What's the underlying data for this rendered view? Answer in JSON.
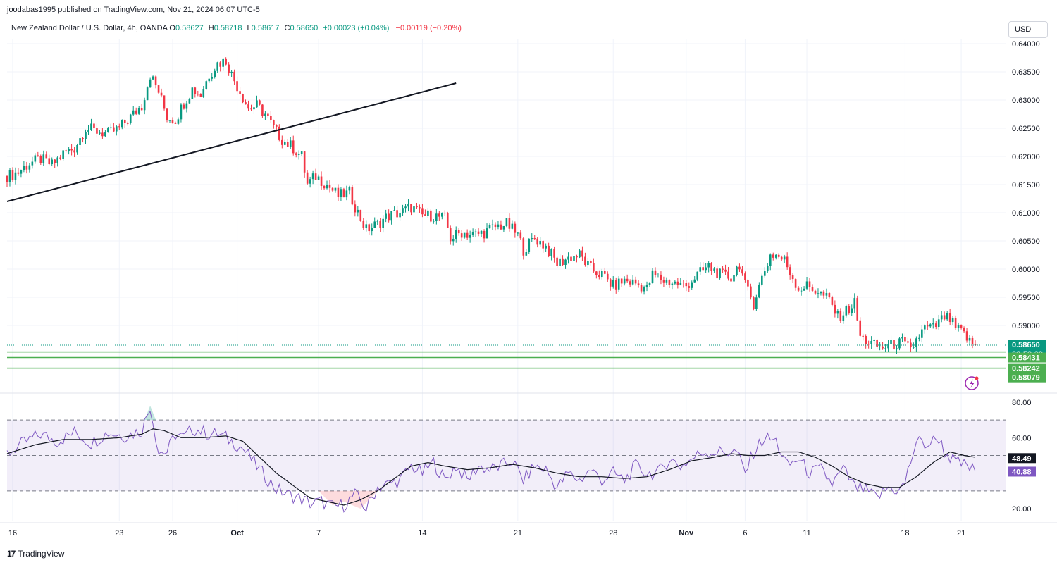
{
  "header": {
    "publisher_line": "joodabas1995 published on TradingView.com, Nov 21, 2024 06:07 UTC-5"
  },
  "legend": {
    "symbol": "New Zealand Dollar / U.S. Dollar, 4h, OANDA",
    "o_label": "O",
    "o_value": "0.58627",
    "h_label": "H",
    "h_value": "0.58718",
    "l_label": "L",
    "l_value": "0.58617",
    "c_label": "C",
    "c_value": "0.58650",
    "change": "+0.00023 (+0.04%)",
    "change2": "−0.00119 (−0.20%)"
  },
  "currency_button": "USD",
  "footer": {
    "brand": "TradingView",
    "logo": "17"
  },
  "colors": {
    "up": "#089981",
    "down": "#f23645",
    "level": "#4caf50",
    "rsi": "#7e57c2",
    "rsi_ma": "#131722",
    "rsi_band": "#7e57c2"
  },
  "chart_data": [
    {
      "type": "candlestick",
      "title": "New Zealand Dollar / U.S. Dollar, 4h, OANDA",
      "ylim": [
        0.5795,
        0.641
      ],
      "y_ticks": [
        "0.64000",
        "0.63500",
        "0.63000",
        "0.62500",
        "0.62000",
        "0.61500",
        "0.61000",
        "0.60500",
        "0.60000",
        "0.59500",
        "0.59000"
      ],
      "y_tick_values": [
        0.64,
        0.635,
        0.63,
        0.625,
        0.62,
        0.615,
        0.61,
        0.605,
        0.6,
        0.595,
        0.59
      ],
      "x_ticks": [
        "16",
        "23",
        "26",
        "Oct",
        "7",
        "14",
        "21",
        "28",
        "Nov",
        "6",
        "11",
        "18",
        "21"
      ],
      "x_tick_index": [
        2,
        40,
        59,
        82,
        111,
        148,
        182,
        216,
        242,
        263,
        285,
        320,
        340
      ],
      "close_path": [
        [
          0,
          0.6165
        ],
        [
          4,
          0.6172
        ],
        [
          8,
          0.6188
        ],
        [
          12,
          0.6195
        ],
        [
          16,
          0.6185
        ],
        [
          20,
          0.6205
        ],
        [
          24,
          0.6215
        ],
        [
          28,
          0.625
        ],
        [
          32,
          0.6245
        ],
        [
          36,
          0.624
        ],
        [
          40,
          0.625
        ],
        [
          44,
          0.627
        ],
        [
          48,
          0.629
        ],
        [
          51,
          0.6345
        ],
        [
          54,
          0.6315
        ],
        [
          57,
          0.627
        ],
        [
          60,
          0.6265
        ],
        [
          63,
          0.6295
        ],
        [
          66,
          0.632
        ],
        [
          69,
          0.631
        ],
        [
          72,
          0.6345
        ],
        [
          75,
          0.6365
        ],
        [
          78,
          0.637
        ],
        [
          80,
          0.6345
        ],
        [
          83,
          0.6315
        ],
        [
          86,
          0.6285
        ],
        [
          89,
          0.629
        ],
        [
          92,
          0.6275
        ],
        [
          95,
          0.625
        ],
        [
          98,
          0.623
        ],
        [
          102,
          0.6215
        ],
        [
          105,
          0.62
        ],
        [
          107,
          0.615
        ],
        [
          110,
          0.6165
        ],
        [
          114,
          0.615
        ],
        [
          118,
          0.613
        ],
        [
          122,
          0.6135
        ],
        [
          125,
          0.61
        ],
        [
          128,
          0.607
        ],
        [
          132,
          0.608
        ],
        [
          136,
          0.6095
        ],
        [
          140,
          0.61
        ],
        [
          144,
          0.611
        ],
        [
          148,
          0.6095
        ],
        [
          152,
          0.6095
        ],
        [
          156,
          0.609
        ],
        [
          158,
          0.6055
        ],
        [
          162,
          0.6065
        ],
        [
          166,
          0.606
        ],
        [
          170,
          0.6065
        ],
        [
          174,
          0.6075
        ],
        [
          178,
          0.608
        ],
        [
          182,
          0.606
        ],
        [
          184,
          0.6035
        ],
        [
          188,
          0.6055
        ],
        [
          192,
          0.604
        ],
        [
          196,
          0.601
        ],
        [
          200,
          0.602
        ],
        [
          204,
          0.6025
        ],
        [
          208,
          0.6
        ],
        [
          212,
          0.599
        ],
        [
          216,
          0.597
        ],
        [
          220,
          0.598
        ],
        [
          224,
          0.5975
        ],
        [
          228,
          0.5965
        ],
        [
          230,
          0.599
        ],
        [
          234,
          0.598
        ],
        [
          238,
          0.5975
        ],
        [
          242,
          0.597
        ],
        [
          246,
          0.599
        ],
        [
          250,
          0.6005
        ],
        [
          254,
          0.599
        ],
        [
          258,
          0.5985
        ],
        [
          261,
          0.601
        ],
        [
          263,
          0.597
        ],
        [
          266,
          0.594
        ],
        [
          269,
          0.5985
        ],
        [
          272,
          0.6025
        ],
        [
          274,
          0.6025
        ],
        [
          277,
          0.6015
        ],
        [
          280,
          0.5985
        ],
        [
          282,
          0.5965
        ],
        [
          285,
          0.597
        ],
        [
          289,
          0.596
        ],
        [
          293,
          0.5945
        ],
        [
          296,
          0.5915
        ],
        [
          300,
          0.593
        ],
        [
          302,
          0.594
        ],
        [
          304,
          0.588
        ],
        [
          307,
          0.587
        ],
        [
          311,
          0.586
        ],
        [
          315,
          0.5865
        ],
        [
          319,
          0.587
        ],
        [
          322,
          0.5855
        ],
        [
          324,
          0.5875
        ],
        [
          327,
          0.5895
        ],
        [
          330,
          0.5895
        ],
        [
          334,
          0.5915
        ],
        [
          336,
          0.591
        ],
        [
          338,
          0.5895
        ],
        [
          341,
          0.5885
        ],
        [
          343,
          0.587
        ],
        [
          345,
          0.5865
        ]
      ],
      "candle_count": 346,
      "trendline": {
        "from": [
          0,
          0.612
        ],
        "to": [
          160,
          0.633
        ]
      },
      "horizontal_levels": [
        0.5853,
        0.58431,
        0.58242
      ],
      "last_price_line": 0.5865,
      "price_labels": [
        {
          "value": 0.5865,
          "text": "0.58650",
          "sub": "02:52:39"
        },
        {
          "value": 0.58431,
          "text": "0.58431"
        },
        {
          "value": 0.58242,
          "text": "0.58242"
        },
        {
          "value": 0.58079,
          "text": "0.58079"
        }
      ]
    },
    {
      "type": "line",
      "title": "RSI",
      "ylim": [
        17,
        82
      ],
      "y_ticks": [
        "80.00",
        "60.00",
        "20.00"
      ],
      "y_tick_values": [
        80,
        60,
        20
      ],
      "band": [
        30,
        70
      ],
      "mid": 50,
      "series": [
        {
          "role": "rsi",
          "points": [
            [
              0,
              51
            ],
            [
              6,
              57
            ],
            [
              12,
              62
            ],
            [
              18,
              58
            ],
            [
              24,
              63
            ],
            [
              30,
              57
            ],
            [
              36,
              63
            ],
            [
              42,
              61
            ],
            [
              48,
              64
            ],
            [
              51,
              78
            ],
            [
              54,
              52
            ],
            [
              57,
              52
            ],
            [
              60,
              62
            ],
            [
              63,
              60
            ],
            [
              66,
              65
            ],
            [
              69,
              64
            ],
            [
              72,
              62
            ],
            [
              75,
              62
            ],
            [
              78,
              60
            ],
            [
              80,
              58
            ],
            [
              84,
              54
            ],
            [
              88,
              46
            ],
            [
              92,
              38
            ],
            [
              96,
              31
            ],
            [
              100,
              28
            ],
            [
              104,
              26
            ],
            [
              108,
              23
            ],
            [
              112,
              24
            ],
            [
              116,
              21
            ],
            [
              120,
              22
            ],
            [
              124,
              28
            ],
            [
              128,
              20
            ],
            [
              132,
              32
            ],
            [
              136,
              34
            ],
            [
              140,
              36
            ],
            [
              144,
              44
            ],
            [
              148,
              40
            ],
            [
              152,
              46
            ],
            [
              156,
              36
            ],
            [
              160,
              44
            ],
            [
              164,
              36
            ],
            [
              168,
              44
            ],
            [
              172,
              42
            ],
            [
              176,
              44
            ],
            [
              180,
              47
            ],
            [
              184,
              36
            ],
            [
              188,
              44
            ],
            [
              192,
              42
            ],
            [
              196,
              32
            ],
            [
              200,
              40
            ],
            [
              204,
              36
            ],
            [
              208,
              42
            ],
            [
              212,
              36
            ],
            [
              216,
              40
            ],
            [
              220,
              36
            ],
            [
              224,
              44
            ],
            [
              228,
              40
            ],
            [
              232,
              40
            ],
            [
              236,
              48
            ],
            [
              240,
              44
            ],
            [
              244,
              48
            ],
            [
              248,
              52
            ],
            [
              252,
              52
            ],
            [
              256,
              52
            ],
            [
              260,
              52
            ],
            [
              263,
              40
            ],
            [
              266,
              52
            ],
            [
              270,
              60
            ],
            [
              274,
              58
            ],
            [
              278,
              44
            ],
            [
              282,
              48
            ],
            [
              286,
              40
            ],
            [
              290,
              42
            ],
            [
              294,
              34
            ],
            [
              298,
              42
            ],
            [
              302,
              32
            ],
            [
              306,
              30
            ],
            [
              310,
              26
            ],
            [
              314,
              32
            ],
            [
              318,
              30
            ],
            [
              320,
              35
            ],
            [
              324,
              58
            ],
            [
              328,
              56
            ],
            [
              332,
              60
            ],
            [
              334,
              52
            ],
            [
              338,
              46
            ],
            [
              342,
              44
            ],
            [
              345,
              41
            ]
          ]
        },
        {
          "role": "rsi_ma",
          "points": [
            [
              0,
              51
            ],
            [
              10,
              56
            ],
            [
              20,
              59
            ],
            [
              30,
              59
            ],
            [
              40,
              60
            ],
            [
              48,
              62
            ],
            [
              52,
              65
            ],
            [
              56,
              64
            ],
            [
              62,
              60
            ],
            [
              70,
              60
            ],
            [
              78,
              61
            ],
            [
              84,
              58
            ],
            [
              90,
              49
            ],
            [
              96,
              40
            ],
            [
              102,
              33
            ],
            [
              108,
              26
            ],
            [
              114,
              24
            ],
            [
              120,
              22
            ],
            [
              126,
              25
            ],
            [
              132,
              30
            ],
            [
              138,
              37
            ],
            [
              144,
              44
            ],
            [
              150,
              46
            ],
            [
              156,
              44
            ],
            [
              164,
              42
            ],
            [
              172,
              43
            ],
            [
              180,
              45
            ],
            [
              188,
              43
            ],
            [
              196,
              40
            ],
            [
              204,
              38
            ],
            [
              212,
              38
            ],
            [
              220,
              37
            ],
            [
              228,
              38
            ],
            [
              236,
              42
            ],
            [
              244,
              47
            ],
            [
              252,
              49
            ],
            [
              258,
              51
            ],
            [
              264,
              50
            ],
            [
              270,
              50
            ],
            [
              276,
              52
            ],
            [
              282,
              52
            ],
            [
              288,
              49
            ],
            [
              294,
              44
            ],
            [
              300,
              38
            ],
            [
              306,
              34
            ],
            [
              312,
              32
            ],
            [
              318,
              32
            ],
            [
              324,
              38
            ],
            [
              330,
              46
            ],
            [
              336,
              52
            ],
            [
              341,
              50
            ],
            [
              345,
              49
            ]
          ]
        }
      ],
      "value_labels": [
        {
          "value": 48.49,
          "text": "48.49"
        },
        {
          "value": 40.88,
          "text": "40.88"
        }
      ]
    }
  ]
}
